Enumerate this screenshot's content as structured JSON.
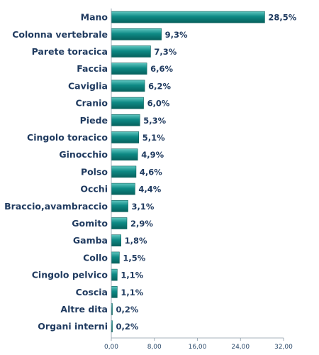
{
  "chart_data": {
    "type": "bar",
    "orientation": "horizontal",
    "categories": [
      "Mano",
      "Colonna vertebrale",
      "Parete toracica",
      "Faccia",
      "Caviglia",
      "Cranio",
      "Piede",
      "Cingolo toracico",
      "Ginocchio",
      "Polso",
      "Occhi",
      "Braccio,avambraccio",
      "Gomito",
      "Gamba",
      "Collo",
      "Cingolo pelvico",
      "Coscia",
      "Altre dita",
      "Organi interni"
    ],
    "values": [
      28.5,
      9.3,
      7.3,
      6.6,
      6.2,
      6.0,
      5.3,
      5.1,
      4.9,
      4.6,
      4.4,
      3.1,
      2.9,
      1.8,
      1.5,
      1.1,
      1.1,
      0.2,
      0.2
    ],
    "value_labels": [
      "28,5%",
      "9,3%",
      "7,3%",
      "6,6%",
      "6,2%",
      "6,0%",
      "5,3%",
      "5,1%",
      "4,9%",
      "4,6%",
      "4,4%",
      "3,1%",
      "2,9%",
      "1,8%",
      "1,5%",
      "1,1%",
      "1,1%",
      "0,2%",
      "0,2%"
    ],
    "xlim": [
      0,
      32
    ],
    "xticks": [
      0,
      8,
      16,
      24,
      32
    ],
    "xtick_labels": [
      "0,00",
      "8,00",
      "16,00",
      "24,00",
      "32,00"
    ],
    "bar_color": "#0e8a85",
    "bar_highlight": "#5fc7c1",
    "title": "",
    "xlabel": "",
    "ylabel": "",
    "grid": false
  }
}
